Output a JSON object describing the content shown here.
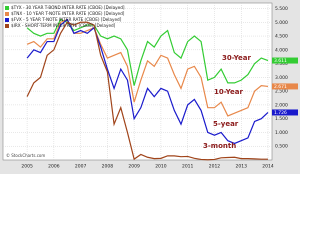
{
  "chart_data": {
    "type": "line",
    "legend": [
      "$TYX - 30 YEAR T-BOND INTER RATE (CBOE) [Delayed]",
      "$TNX - 10 YEAR T-NOTE INTER RATE (CBOE) [Delayed]",
      "$FVX - 5 YEAR T-NOTE INTER RATE (CBOE) [Delayed]",
      "$IRX - SHORT-TERM INTER RATE (CBOE) [Delayed]"
    ],
    "credit": "© StockCharts.com",
    "x": [
      2005,
      2005.25,
      2005.5,
      2005.75,
      2006,
      2006.25,
      2006.5,
      2006.75,
      2007,
      2007.25,
      2007.5,
      2007.75,
      2008,
      2008.25,
      2008.5,
      2008.75,
      2009,
      2009.25,
      2009.5,
      2009.75,
      2010,
      2010.25,
      2010.5,
      2010.75,
      2011,
      2011.25,
      2011.5,
      2011.75,
      2012,
      2012.25,
      2012.5,
      2012.75,
      2013,
      2013.25,
      2013.5,
      2013.75,
      2014
    ],
    "series": [
      {
        "name": "30-Year",
        "color": "#33cc33",
        "values": [
          4.8,
          4.6,
          4.5,
          4.6,
          4.6,
          5.1,
          5.0,
          4.7,
          4.8,
          4.9,
          4.9,
          4.5,
          4.4,
          4.5,
          4.4,
          4.0,
          2.7,
          3.6,
          4.3,
          4.1,
          4.5,
          4.7,
          3.9,
          3.7,
          4.3,
          4.5,
          4.3,
          2.9,
          3.0,
          3.3,
          2.8,
          2.8,
          2.9,
          3.1,
          3.5,
          3.7,
          3.611
        ]
      },
      {
        "name": "10-Year",
        "color": "#e8884a",
        "values": [
          4.2,
          4.3,
          4.1,
          4.4,
          4.4,
          5.0,
          5.1,
          4.6,
          4.6,
          4.7,
          4.8,
          4.2,
          3.7,
          3.8,
          3.9,
          3.4,
          2.1,
          2.9,
          3.6,
          3.4,
          3.8,
          3.7,
          3.1,
          2.6,
          3.3,
          3.4,
          3.0,
          1.9,
          1.9,
          2.1,
          1.6,
          1.7,
          1.8,
          1.9,
          2.5,
          2.7,
          2.671
        ]
      },
      {
        "name": "5-year",
        "color": "#1a1acc",
        "values": [
          3.7,
          4.0,
          3.9,
          4.3,
          4.3,
          4.9,
          5.1,
          4.6,
          4.7,
          4.6,
          4.8,
          4.1,
          3.3,
          2.6,
          3.3,
          2.9,
          1.5,
          1.9,
          2.6,
          2.3,
          2.6,
          2.5,
          1.8,
          1.3,
          2.0,
          2.2,
          1.8,
          1.0,
          0.9,
          1.0,
          0.7,
          0.6,
          0.7,
          0.8,
          1.4,
          1.5,
          1.726
        ]
      },
      {
        "name": "3-month",
        "color": "#a0441a",
        "values": [
          2.3,
          2.8,
          3.0,
          3.8,
          4.0,
          4.6,
          5.0,
          4.9,
          5.0,
          5.0,
          4.9,
          3.8,
          3.2,
          1.3,
          1.9,
          1.0,
          0.03,
          0.2,
          0.1,
          0.05,
          0.06,
          0.15,
          0.15,
          0.12,
          0.13,
          0.06,
          0.02,
          0.01,
          0.02,
          0.08,
          0.09,
          0.1,
          0.05,
          0.05,
          0.04,
          0.03,
          0.03
        ]
      }
    ],
    "xlim": [
      2004.1,
      2014.15
    ],
    "xticks": [
      2005,
      2006,
      2007,
      2008,
      2009,
      2010,
      2011,
      2012,
      2013,
      2014
    ],
    "ylim": [
      0,
      5.7
    ],
    "yticks": [
      {
        "value": 0.5,
        "label": "0.500"
      },
      {
        "value": 1,
        "label": "1.000"
      },
      {
        "value": 1.5,
        "label": "1.500"
      },
      {
        "value": 2,
        "label": "2.000"
      },
      {
        "value": 2.5,
        "label": "2.500"
      },
      {
        "value": 3,
        "label": "3.000"
      },
      {
        "value": 3.5,
        "label": "3.500"
      },
      {
        "value": 4,
        "label": "4.000"
      },
      {
        "value": 4.5,
        "label": "4.500"
      },
      {
        "value": 5,
        "label": "5.000"
      },
      {
        "value": 5.5,
        "label": "5.500"
      }
    ],
    "grid": true
  }
}
